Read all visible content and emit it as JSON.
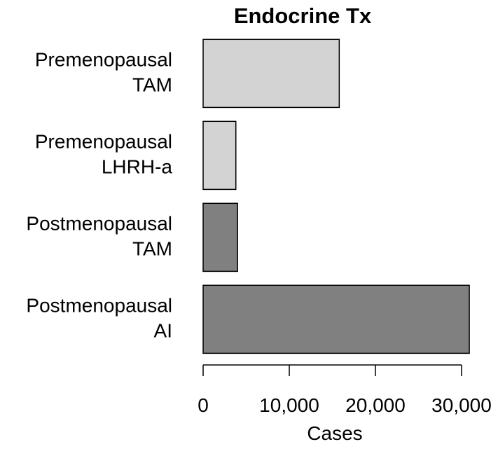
{
  "chart_data": {
    "type": "hbar",
    "title": "Endocrine Tx",
    "categories": [
      "Premenopausal\nTAM",
      "Premenopausal\nLHRH-a",
      "Postmenopausal\nTAM",
      "Postmenopausal\nAI"
    ],
    "values": [
      15800,
      3800,
      4000,
      30900
    ],
    "colors": [
      "#d3d3d3",
      "#d3d3d3",
      "#808080",
      "#808080"
    ],
    "xlabel": "Cases",
    "xlim": [
      0,
      30000
    ],
    "xticks": [
      0,
      {
        "value": 10000,
        "label": "10,000"
      },
      {
        "value": 20000,
        "label": "20,000"
      },
      {
        "value": 30000,
        "label": "30,000"
      }
    ],
    "grid": false
  }
}
